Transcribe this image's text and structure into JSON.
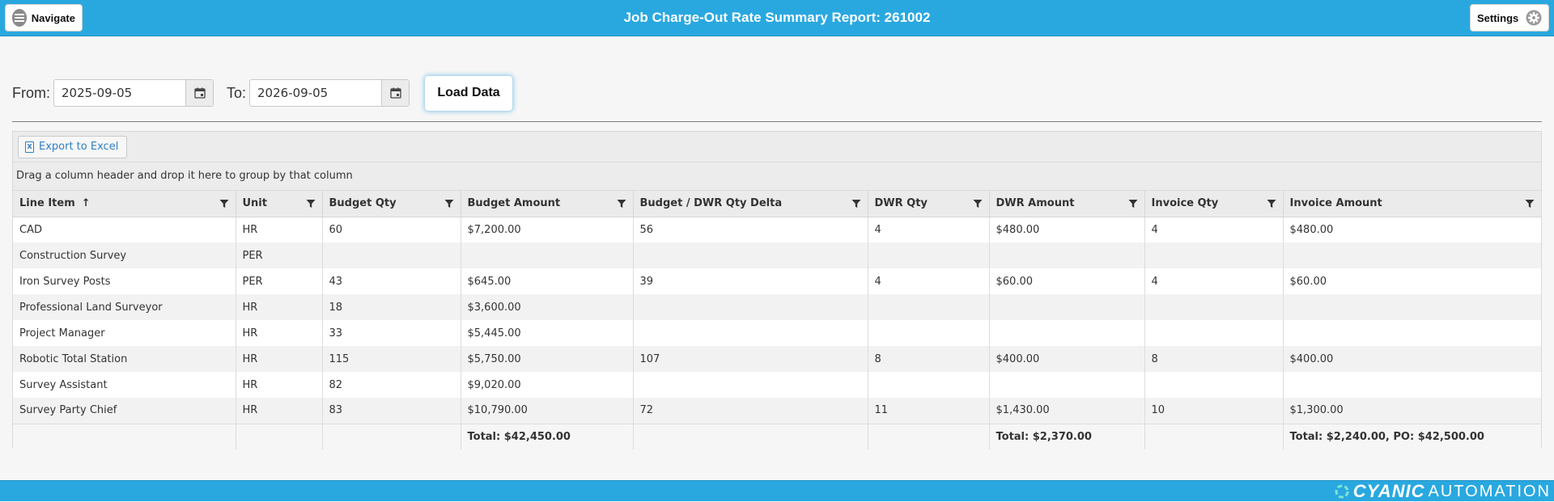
{
  "header": {
    "title": "Job Charge-Out Rate Summary Report: 261002",
    "navigate_label": "Navigate",
    "settings_label": "Settings"
  },
  "filters": {
    "from_label": "From:",
    "from_value": "2025-09-05",
    "to_label": "To:",
    "to_value": "2026-09-05",
    "load_label": "Load Data"
  },
  "grid": {
    "export_label": "Export to Excel",
    "group_hint": "Drag a column header and drop it here to group by that column",
    "columns": [
      "Line Item",
      "Unit",
      "Budget Qty",
      "Budget Amount",
      "Budget / DWR Qty Delta",
      "DWR Qty",
      "DWR Amount",
      "Invoice Qty",
      "Invoice Amount"
    ],
    "sort_indicator": "↑",
    "rows": [
      [
        "CAD",
        "HR",
        "60",
        "$7,200.00",
        "56",
        "4",
        "$480.00",
        "4",
        "$480.00"
      ],
      [
        "Construction Survey",
        "PER",
        "",
        "",
        "",
        "",
        "",
        "",
        ""
      ],
      [
        "Iron Survey Posts",
        "PER",
        "43",
        "$645.00",
        "39",
        "4",
        "$60.00",
        "4",
        "$60.00"
      ],
      [
        "Professional Land Surveyor",
        "HR",
        "18",
        "$3,600.00",
        "",
        "",
        "",
        "",
        ""
      ],
      [
        "Project Manager",
        "HR",
        "33",
        "$5,445.00",
        "",
        "",
        "",
        "",
        ""
      ],
      [
        "Robotic Total Station",
        "HR",
        "115",
        "$5,750.00",
        "107",
        "8",
        "$400.00",
        "8",
        "$400.00"
      ],
      [
        "Survey Assistant",
        "HR",
        "82",
        "$9,020.00",
        "",
        "",
        "",
        "",
        ""
      ],
      [
        "Survey Party Chief",
        "HR",
        "83",
        "$10,790.00",
        "72",
        "11",
        "$1,430.00",
        "10",
        "$1,300.00"
      ]
    ],
    "footer": [
      "",
      "",
      "",
      "Total: $42,450.00",
      "",
      "",
      "Total: $2,370.00",
      "",
      "Total: $2,240.00, PO: $42,500.00"
    ]
  },
  "footer": {
    "brand_primary": "CYANIC",
    "brand_secondary": "AUTOMATION"
  },
  "colors": {
    "accent": "#29a8e0",
    "export_text": "#2f7fc4"
  }
}
